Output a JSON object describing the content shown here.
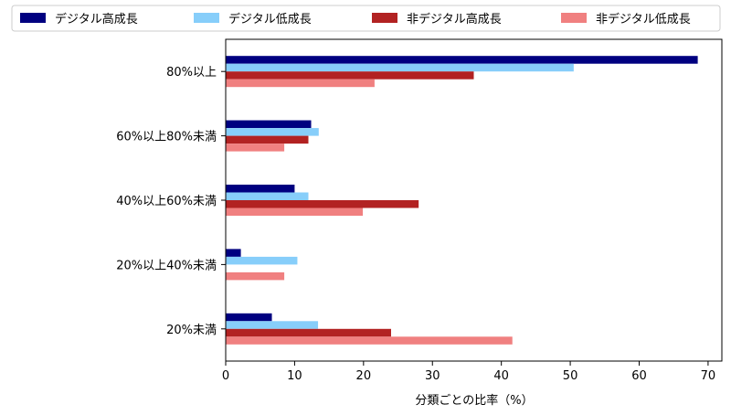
{
  "chart_data": {
    "type": "bar",
    "orientation": "horizontal",
    "categories": [
      "80%以上",
      "60%以上80%未満",
      "40%以上60%未満",
      "20%以上40%未満",
      "20%未満"
    ],
    "series": [
      {
        "name": "デジタル高成長",
        "color": "#000080",
        "values": [
          68.5,
          12.4,
          10.0,
          2.2,
          6.7
        ]
      },
      {
        "name": "デジタル低成長",
        "color": "#87cefa",
        "values": [
          50.5,
          13.5,
          12.0,
          10.4,
          13.4
        ]
      },
      {
        "name": "非デジタル高成長",
        "color": "#b22222",
        "values": [
          36.0,
          12.0,
          28.0,
          0,
          24.0
        ]
      },
      {
        "name": "非デジタル低成長",
        "color": "#f08080",
        "values": [
          21.6,
          8.5,
          19.9,
          8.5,
          41.6
        ]
      }
    ],
    "xlabel": "分類ごとの比率（%）",
    "ylabel": "",
    "xlim": [
      0,
      72
    ],
    "xticks": [
      0,
      10,
      20,
      30,
      40,
      50,
      60,
      70
    ],
    "legend": "top",
    "grid": false
  }
}
